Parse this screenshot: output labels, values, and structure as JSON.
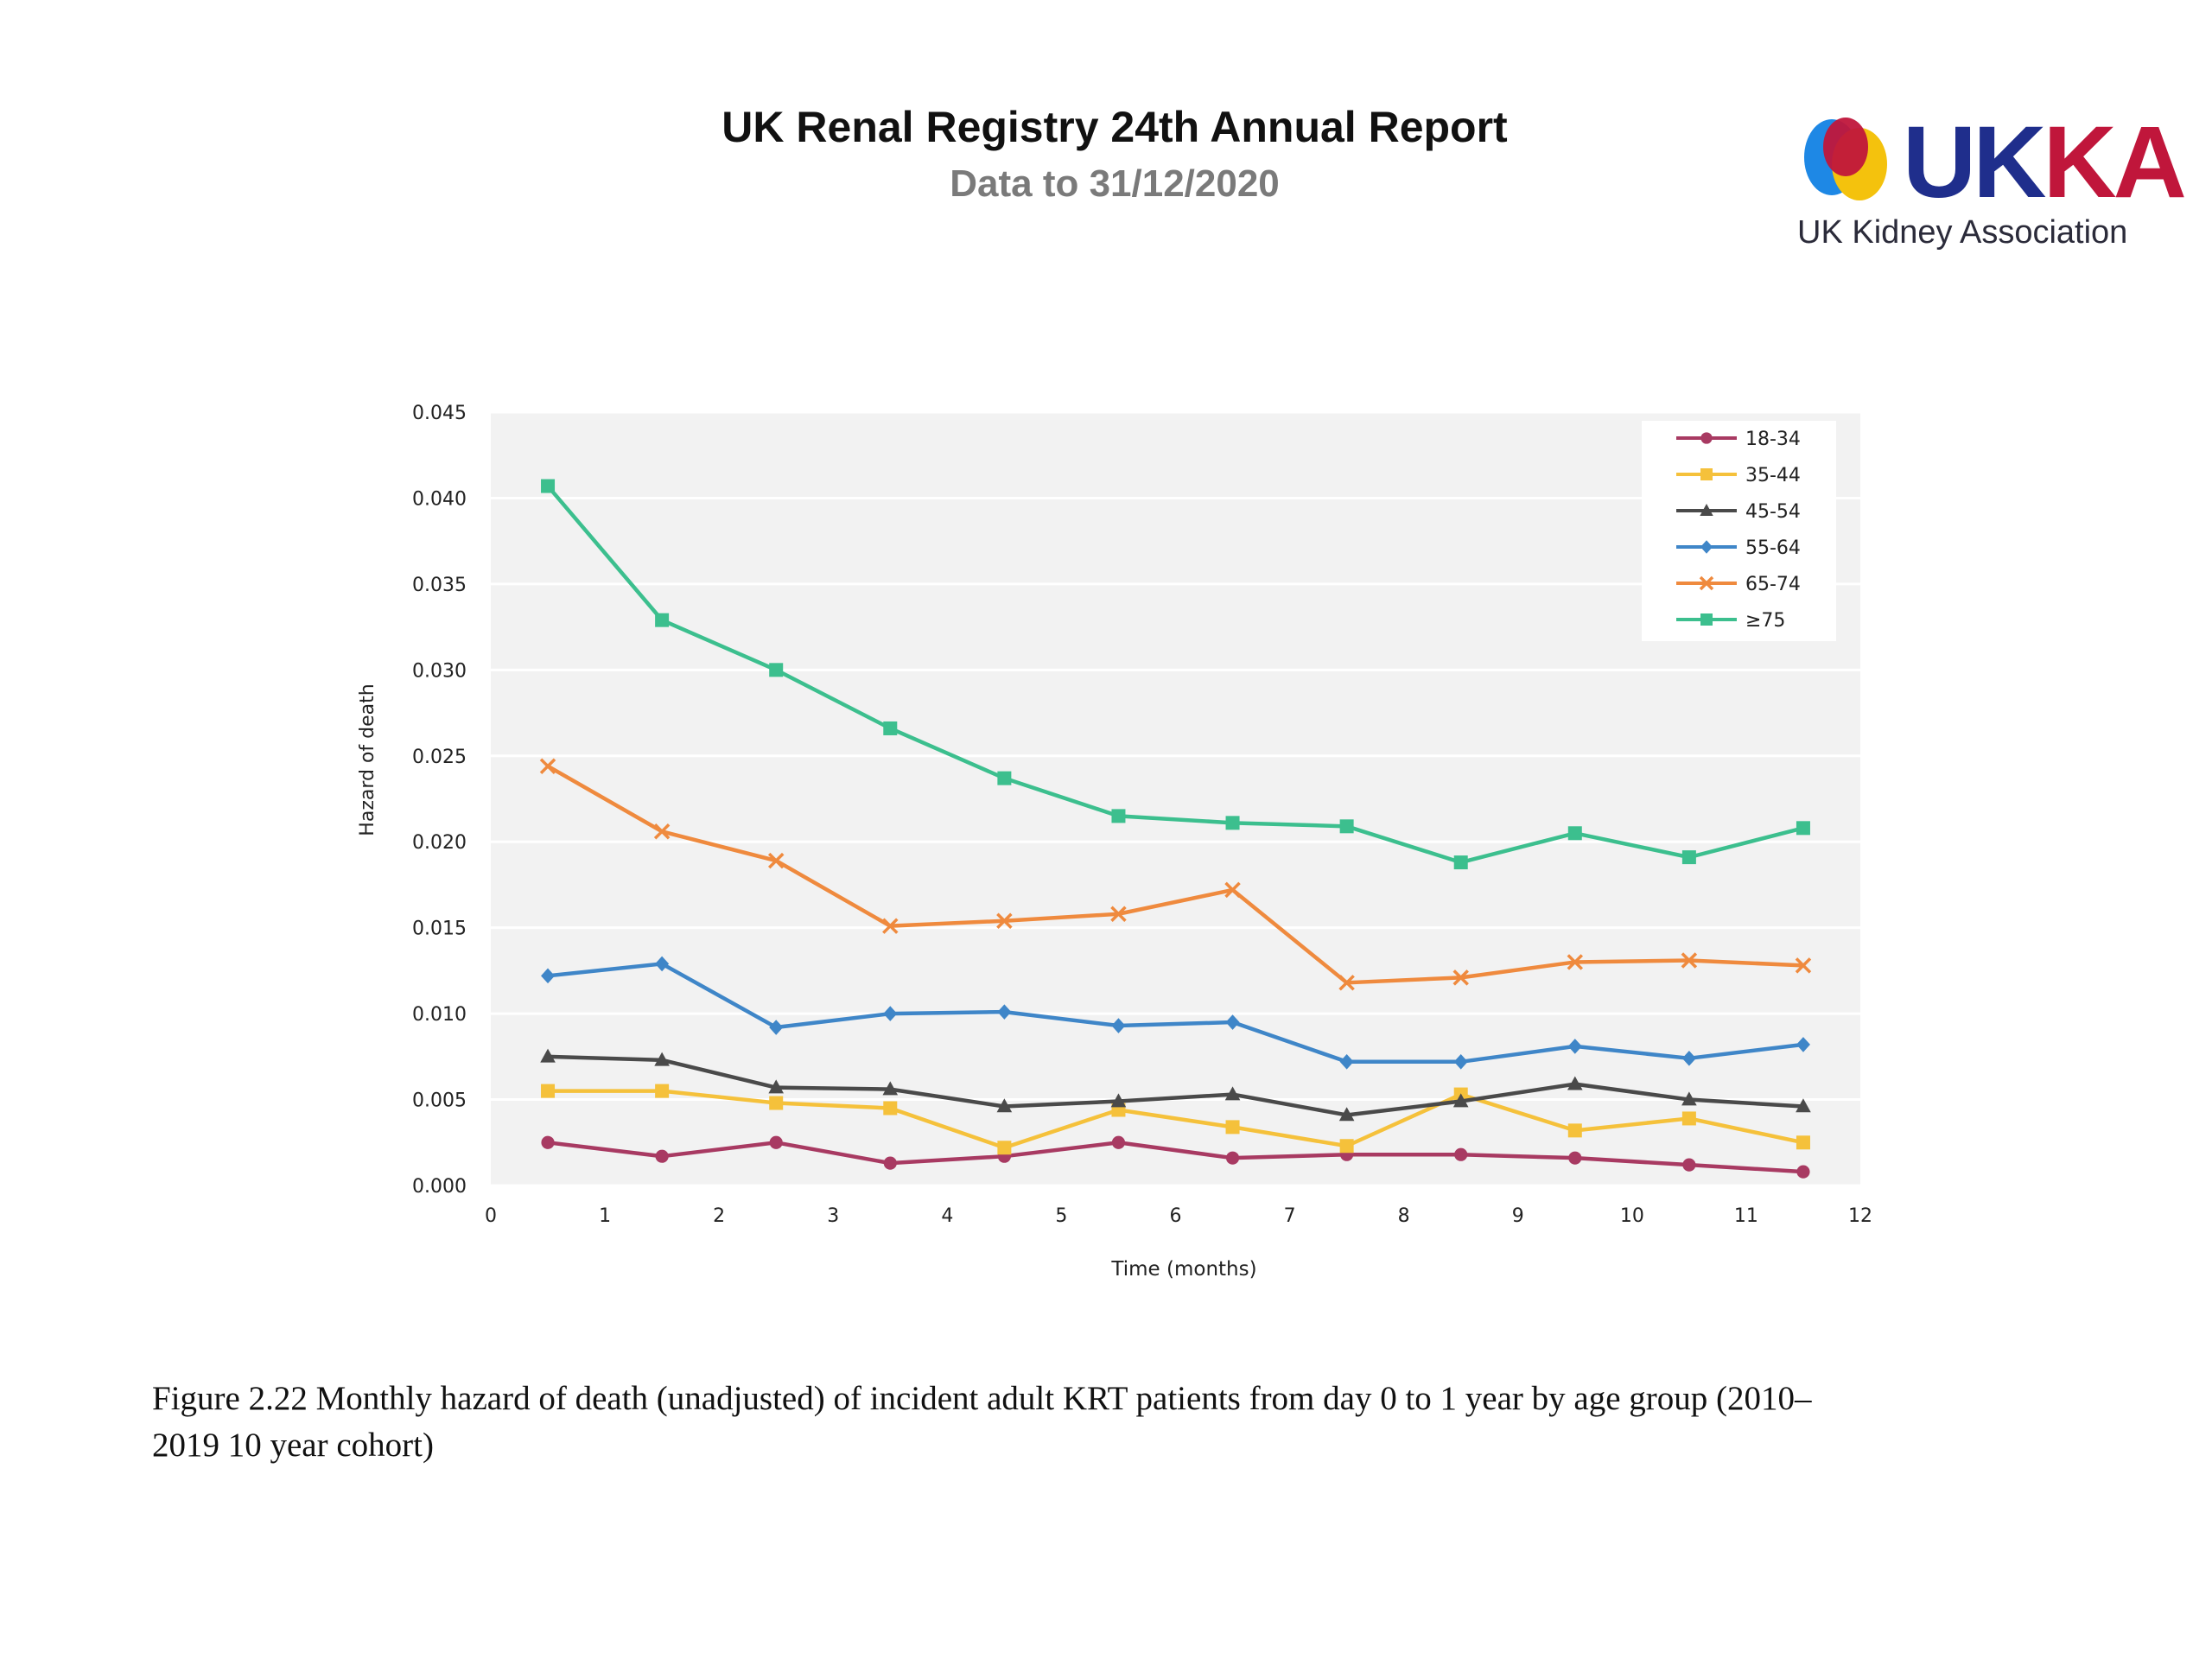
{
  "header": {
    "title": "UK Renal Registry 24th Annual Report",
    "subtitle": "Data to 31/12/2020"
  },
  "logo": {
    "wordmark_blue": "UK",
    "wordmark_red": "KA",
    "tagline": "UK Kidney Association",
    "colors": {
      "blue": "#1f2e8c",
      "red": "#c0163b",
      "yellow": "#f4c20d",
      "lightblue": "#1e88e5"
    }
  },
  "caption": "Figure 2.22 Monthly hazard of death (unadjusted) of incident adult KRT patients from day 0 to 1 year by age group (2010–2019 10 year cohort)",
  "chart_data": {
    "type": "line",
    "xlabel": "Time (months)",
    "ylabel": "Hazard of death",
    "xlim": [
      0,
      12
    ],
    "ylim": [
      0,
      0.045
    ],
    "xticks": [
      "0",
      "1",
      "2",
      "3",
      "4",
      "5",
      "6",
      "7",
      "8",
      "9",
      "10",
      "11",
      "12"
    ],
    "yticks": [
      "0.000",
      "0.005",
      "0.010",
      "0.015",
      "0.020",
      "0.025",
      "0.030",
      "0.035",
      "0.040",
      "0.045"
    ],
    "grid": true,
    "legend_position": "top-right",
    "x": [
      0.5,
      1.5,
      2.5,
      3.5,
      4.5,
      5.5,
      6.5,
      7.5,
      8.5,
      9.5,
      10.5,
      11.5
    ],
    "series": [
      {
        "name": "18-34",
        "color": "#a83a62",
        "marker": "circle",
        "values": [
          0.0025,
          0.0017,
          0.0025,
          0.0013,
          0.0017,
          0.0025,
          0.0016,
          0.0018,
          0.0018,
          0.0016,
          0.0012,
          0.0008
        ]
      },
      {
        "name": "35-44",
        "color": "#f5c13b",
        "marker": "square",
        "values": [
          0.0055,
          0.0055,
          0.0048,
          0.0045,
          0.0022,
          0.0044,
          0.0034,
          0.0023,
          0.0053,
          0.0032,
          0.0039,
          0.0025
        ]
      },
      {
        "name": "45-54",
        "color": "#4a4a4a",
        "marker": "triangle",
        "values": [
          0.0075,
          0.0073,
          0.0057,
          0.0056,
          0.0046,
          0.0049,
          0.0053,
          0.0041,
          0.0049,
          0.0059,
          0.005,
          0.0046
        ]
      },
      {
        "name": "55-64",
        "color": "#3f86c8",
        "marker": "diamond",
        "values": [
          0.0122,
          0.0129,
          0.0092,
          0.01,
          0.0101,
          0.0093,
          0.0095,
          0.0072,
          0.0072,
          0.0081,
          0.0074,
          0.0082
        ]
      },
      {
        "name": "65-74",
        "color": "#ef8a3e",
        "marker": "x",
        "values": [
          0.0244,
          0.0206,
          0.0189,
          0.0151,
          0.0154,
          0.0158,
          0.0172,
          0.0118,
          0.0121,
          0.013,
          0.0131,
          0.0128
        ]
      },
      {
        "name": "≥75",
        "color": "#3cbf8e",
        "marker": "square",
        "values": [
          0.0407,
          0.0329,
          0.03,
          0.0266,
          0.0237,
          0.0215,
          0.0211,
          0.0209,
          0.0188,
          0.0205,
          0.0191,
          0.0208
        ]
      }
    ]
  }
}
